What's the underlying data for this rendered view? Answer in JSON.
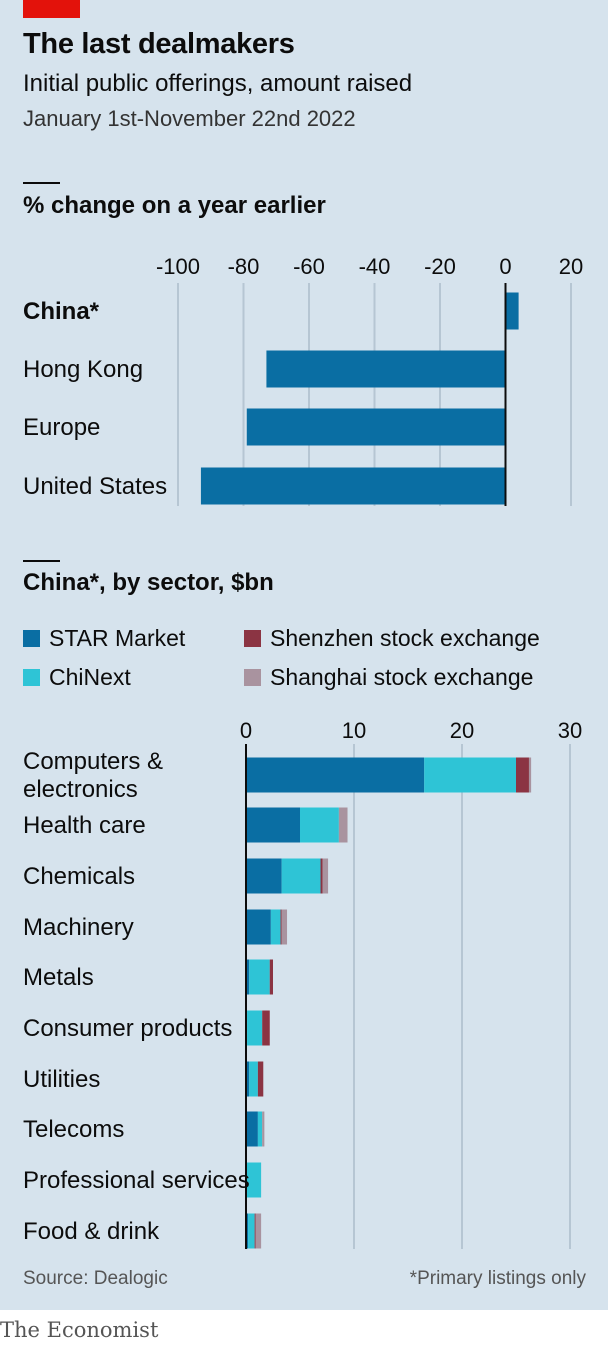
{
  "header": {
    "title": "The last dealmakers",
    "subtitle": "Initial public offerings, amount raised",
    "dates": "January 1st-November 22nd 2022"
  },
  "footer": {
    "source": "Source: Dealogic",
    "footnote": "*Primary listings only",
    "brand": "The Economist"
  },
  "colors": {
    "star": "#0a6ea3",
    "chinext": "#2ec4d6",
    "shenzhen": "#8b3443",
    "shanghai": "#a9939f",
    "gridline": "#b6c6d3",
    "background": "#d6e3ed"
  },
  "legend": {
    "star": "STAR Market",
    "chinext": "ChiNext",
    "shenzhen": "Shenzhen stock exchange",
    "shanghai": "Shanghai stock exchange"
  },
  "chart_data": [
    {
      "type": "bar",
      "orientation": "horizontal",
      "title": "% change on a year earlier",
      "categories": [
        "China*",
        "Hong Kong",
        "Europe",
        "United States"
      ],
      "bold_categories": [
        "China*"
      ],
      "values": [
        4,
        -73,
        -79,
        -93
      ],
      "xlim": [
        -100,
        20
      ],
      "ticks": [
        -100,
        -80,
        -60,
        -40,
        -20,
        0,
        20
      ],
      "tick_labels": [
        "-100",
        "-80",
        "-60",
        "-40",
        "-20",
        "0",
        "20"
      ]
    },
    {
      "type": "bar",
      "orientation": "horizontal",
      "stacked": true,
      "title": "China*, by sector, $bn",
      "categories": [
        "Computers &\nelectronics",
        "Health care",
        "Chemicals",
        "Machinery",
        "Metals",
        "Consumer products",
        "Utilities",
        "Telecoms",
        "Professional services",
        "Food & drink"
      ],
      "series": [
        {
          "name": "STAR Market",
          "key": "star",
          "values": [
            16.5,
            5.0,
            3.3,
            2.3,
            0.3,
            0.1,
            0.3,
            1.1,
            0.0,
            0.2
          ]
        },
        {
          "name": "ChiNext",
          "key": "chinext",
          "values": [
            8.5,
            3.6,
            3.6,
            0.9,
            1.9,
            1.4,
            0.8,
            0.4,
            1.4,
            0.6
          ]
        },
        {
          "name": "Shenzhen stock exchange",
          "key": "shenzhen",
          "values": [
            1.2,
            0.0,
            0.2,
            0.1,
            0.3,
            0.7,
            0.5,
            0.0,
            0.0,
            0.1
          ]
        },
        {
          "name": "Shanghai stock exchange",
          "key": "shanghai",
          "values": [
            0.2,
            0.8,
            0.5,
            0.5,
            0.0,
            0.0,
            0.0,
            0.2,
            0.0,
            0.5
          ]
        }
      ],
      "xlim": [
        0,
        30
      ],
      "ticks": [
        0,
        10,
        20,
        30
      ],
      "tick_labels": [
        "0",
        "10",
        "20",
        "30"
      ]
    }
  ]
}
